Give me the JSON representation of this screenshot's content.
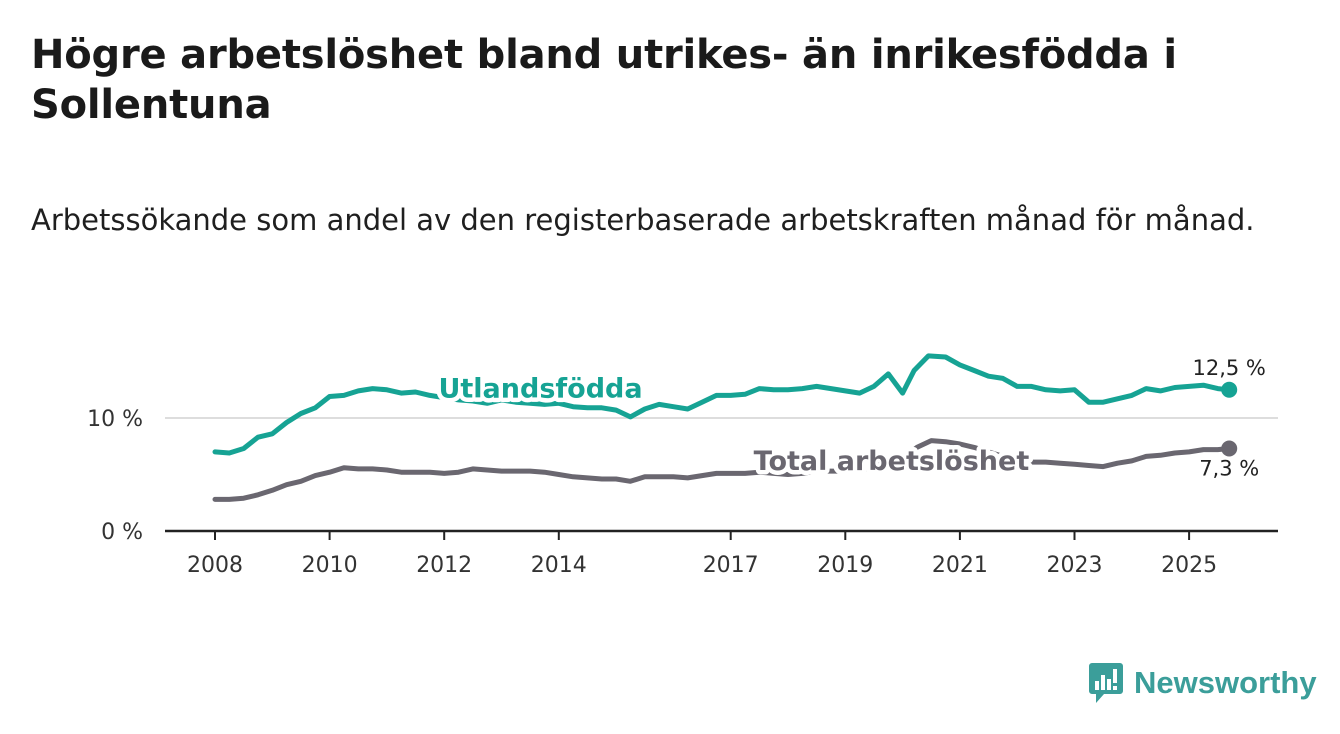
{
  "title": "Högre arbetslöshet bland utrikes- än inrikesfödda i Sollentuna",
  "subtitle": "Arbetssökande som andel av den registerbaserade arbetskraften månad för månad.",
  "brand": "Newsworthy",
  "colors": {
    "foreign": "#16a394",
    "total": "#6a6770",
    "axis": "#222222",
    "grid": "#dddddd",
    "brand": "#3b9e9a"
  },
  "chart_data": {
    "type": "line",
    "title": "Högre arbetslöshet bland utrikes- än inrikesfödda i Sollentuna",
    "xlabel": "",
    "ylabel": "",
    "xlim": [
      2007.6,
      2026.6
    ],
    "ylim": [
      0,
      15
    ],
    "y_ticks": [
      {
        "value": 0,
        "label": "0 %"
      },
      {
        "value": 10,
        "label": "10 %"
      }
    ],
    "x_ticks": [
      {
        "value": 2008,
        "label": "2008"
      },
      {
        "value": 2010,
        "label": "2010"
      },
      {
        "value": 2012,
        "label": "2012"
      },
      {
        "value": 2014,
        "label": "2014"
      },
      {
        "value": 2017,
        "label": "2017"
      },
      {
        "value": 2019,
        "label": "2019"
      },
      {
        "value": 2021,
        "label": "2021"
      },
      {
        "value": 2023,
        "label": "2023"
      },
      {
        "value": 2025,
        "label": "2025"
      }
    ],
    "series": [
      {
        "name": "Utlandsfödda",
        "color": "#16a394",
        "end_label": "12,5 %",
        "label_at": [
          2011.9,
          12.6
        ],
        "points": [
          [
            2008.0,
            7.0
          ],
          [
            2008.25,
            6.9
          ],
          [
            2008.5,
            7.3
          ],
          [
            2008.75,
            8.3
          ],
          [
            2009.0,
            8.6
          ],
          [
            2009.25,
            9.6
          ],
          [
            2009.5,
            10.4
          ],
          [
            2009.75,
            10.9
          ],
          [
            2010.0,
            11.9
          ],
          [
            2010.25,
            12.0
          ],
          [
            2010.5,
            12.4
          ],
          [
            2010.75,
            12.6
          ],
          [
            2011.0,
            12.5
          ],
          [
            2011.25,
            12.2
          ],
          [
            2011.5,
            12.3
          ],
          [
            2011.75,
            12.0
          ],
          [
            2012.0,
            11.8
          ],
          [
            2012.25,
            11.6
          ],
          [
            2012.5,
            11.5
          ],
          [
            2012.75,
            11.3
          ],
          [
            2013.0,
            11.6
          ],
          [
            2013.25,
            11.4
          ],
          [
            2013.5,
            11.3
          ],
          [
            2013.75,
            11.2
          ],
          [
            2014.0,
            11.3
          ],
          [
            2014.25,
            11.0
          ],
          [
            2014.5,
            10.9
          ],
          [
            2014.75,
            10.9
          ],
          [
            2015.0,
            10.7
          ],
          [
            2015.25,
            10.1
          ],
          [
            2015.5,
            10.8
          ],
          [
            2015.75,
            11.2
          ],
          [
            2016.0,
            11.0
          ],
          [
            2016.25,
            10.8
          ],
          [
            2016.5,
            11.4
          ],
          [
            2016.75,
            12.0
          ],
          [
            2017.0,
            12.0
          ],
          [
            2017.25,
            12.1
          ],
          [
            2017.5,
            12.6
          ],
          [
            2017.75,
            12.5
          ],
          [
            2018.0,
            12.5
          ],
          [
            2018.25,
            12.6
          ],
          [
            2018.5,
            12.8
          ],
          [
            2018.75,
            12.6
          ],
          [
            2019.0,
            12.4
          ],
          [
            2019.25,
            12.2
          ],
          [
            2019.5,
            12.8
          ],
          [
            2019.75,
            13.9
          ],
          [
            2020.0,
            12.2
          ],
          [
            2020.2,
            14.2
          ],
          [
            2020.45,
            15.5
          ],
          [
            2020.75,
            15.4
          ],
          [
            2021.0,
            14.7
          ],
          [
            2021.25,
            14.2
          ],
          [
            2021.5,
            13.7
          ],
          [
            2021.75,
            13.5
          ],
          [
            2022.0,
            12.8
          ],
          [
            2022.25,
            12.8
          ],
          [
            2022.5,
            12.5
          ],
          [
            2022.75,
            12.4
          ],
          [
            2023.0,
            12.5
          ],
          [
            2023.25,
            11.4
          ],
          [
            2023.5,
            11.4
          ],
          [
            2023.75,
            11.7
          ],
          [
            2024.0,
            12.0
          ],
          [
            2024.25,
            12.6
          ],
          [
            2024.5,
            12.4
          ],
          [
            2024.75,
            12.7
          ],
          [
            2025.0,
            12.8
          ],
          [
            2025.25,
            12.9
          ],
          [
            2025.5,
            12.6
          ],
          [
            2025.7,
            12.5
          ]
        ]
      },
      {
        "name": "Total arbetslöshet",
        "color": "#6a6770",
        "end_label": "7,3 %",
        "label_at": [
          2017.4,
          6.2
        ],
        "points": [
          [
            2008.0,
            2.8
          ],
          [
            2008.25,
            2.8
          ],
          [
            2008.5,
            2.9
          ],
          [
            2008.75,
            3.2
          ],
          [
            2009.0,
            3.6
          ],
          [
            2009.25,
            4.1
          ],
          [
            2009.5,
            4.4
          ],
          [
            2009.75,
            4.9
          ],
          [
            2010.0,
            5.2
          ],
          [
            2010.25,
            5.6
          ],
          [
            2010.5,
            5.5
          ],
          [
            2010.75,
            5.5
          ],
          [
            2011.0,
            5.4
          ],
          [
            2011.25,
            5.2
          ],
          [
            2011.5,
            5.2
          ],
          [
            2011.75,
            5.2
          ],
          [
            2012.0,
            5.1
          ],
          [
            2012.25,
            5.2
          ],
          [
            2012.5,
            5.5
          ],
          [
            2012.75,
            5.4
          ],
          [
            2013.0,
            5.3
          ],
          [
            2013.25,
            5.3
          ],
          [
            2013.5,
            5.3
          ],
          [
            2013.75,
            5.2
          ],
          [
            2014.0,
            5.0
          ],
          [
            2014.25,
            4.8
          ],
          [
            2014.5,
            4.7
          ],
          [
            2014.75,
            4.6
          ],
          [
            2015.0,
            4.6
          ],
          [
            2015.25,
            4.4
          ],
          [
            2015.5,
            4.8
          ],
          [
            2015.75,
            4.8
          ],
          [
            2016.0,
            4.8
          ],
          [
            2016.25,
            4.7
          ],
          [
            2016.5,
            4.9
          ],
          [
            2016.75,
            5.1
          ],
          [
            2017.0,
            5.1
          ],
          [
            2017.25,
            5.1
          ],
          [
            2017.5,
            5.2
          ],
          [
            2017.75,
            5.1
          ],
          [
            2018.0,
            5.0
          ],
          [
            2018.25,
            5.1
          ],
          [
            2018.5,
            5.3
          ],
          [
            2018.75,
            5.3
          ],
          [
            2019.0,
            5.3
          ],
          [
            2019.25,
            5.4
          ],
          [
            2019.5,
            5.6
          ],
          [
            2019.75,
            6.2
          ],
          [
            2020.0,
            6.4
          ],
          [
            2020.25,
            7.4
          ],
          [
            2020.5,
            8.0
          ],
          [
            2020.75,
            7.9
          ],
          [
            2021.0,
            7.7
          ],
          [
            2021.25,
            7.4
          ],
          [
            2021.5,
            7.0
          ],
          [
            2021.75,
            6.6
          ],
          [
            2022.0,
            6.3
          ],
          [
            2022.25,
            6.1
          ],
          [
            2022.5,
            6.1
          ],
          [
            2022.75,
            6.0
          ],
          [
            2023.0,
            5.9
          ],
          [
            2023.25,
            5.8
          ],
          [
            2023.5,
            5.7
          ],
          [
            2023.75,
            6.0
          ],
          [
            2024.0,
            6.2
          ],
          [
            2024.25,
            6.6
          ],
          [
            2024.5,
            6.7
          ],
          [
            2024.75,
            6.9
          ],
          [
            2025.0,
            7.0
          ],
          [
            2025.25,
            7.2
          ],
          [
            2025.5,
            7.2
          ],
          [
            2025.7,
            7.3
          ]
        ]
      }
    ],
    "grid": true,
    "legend": "inline"
  }
}
